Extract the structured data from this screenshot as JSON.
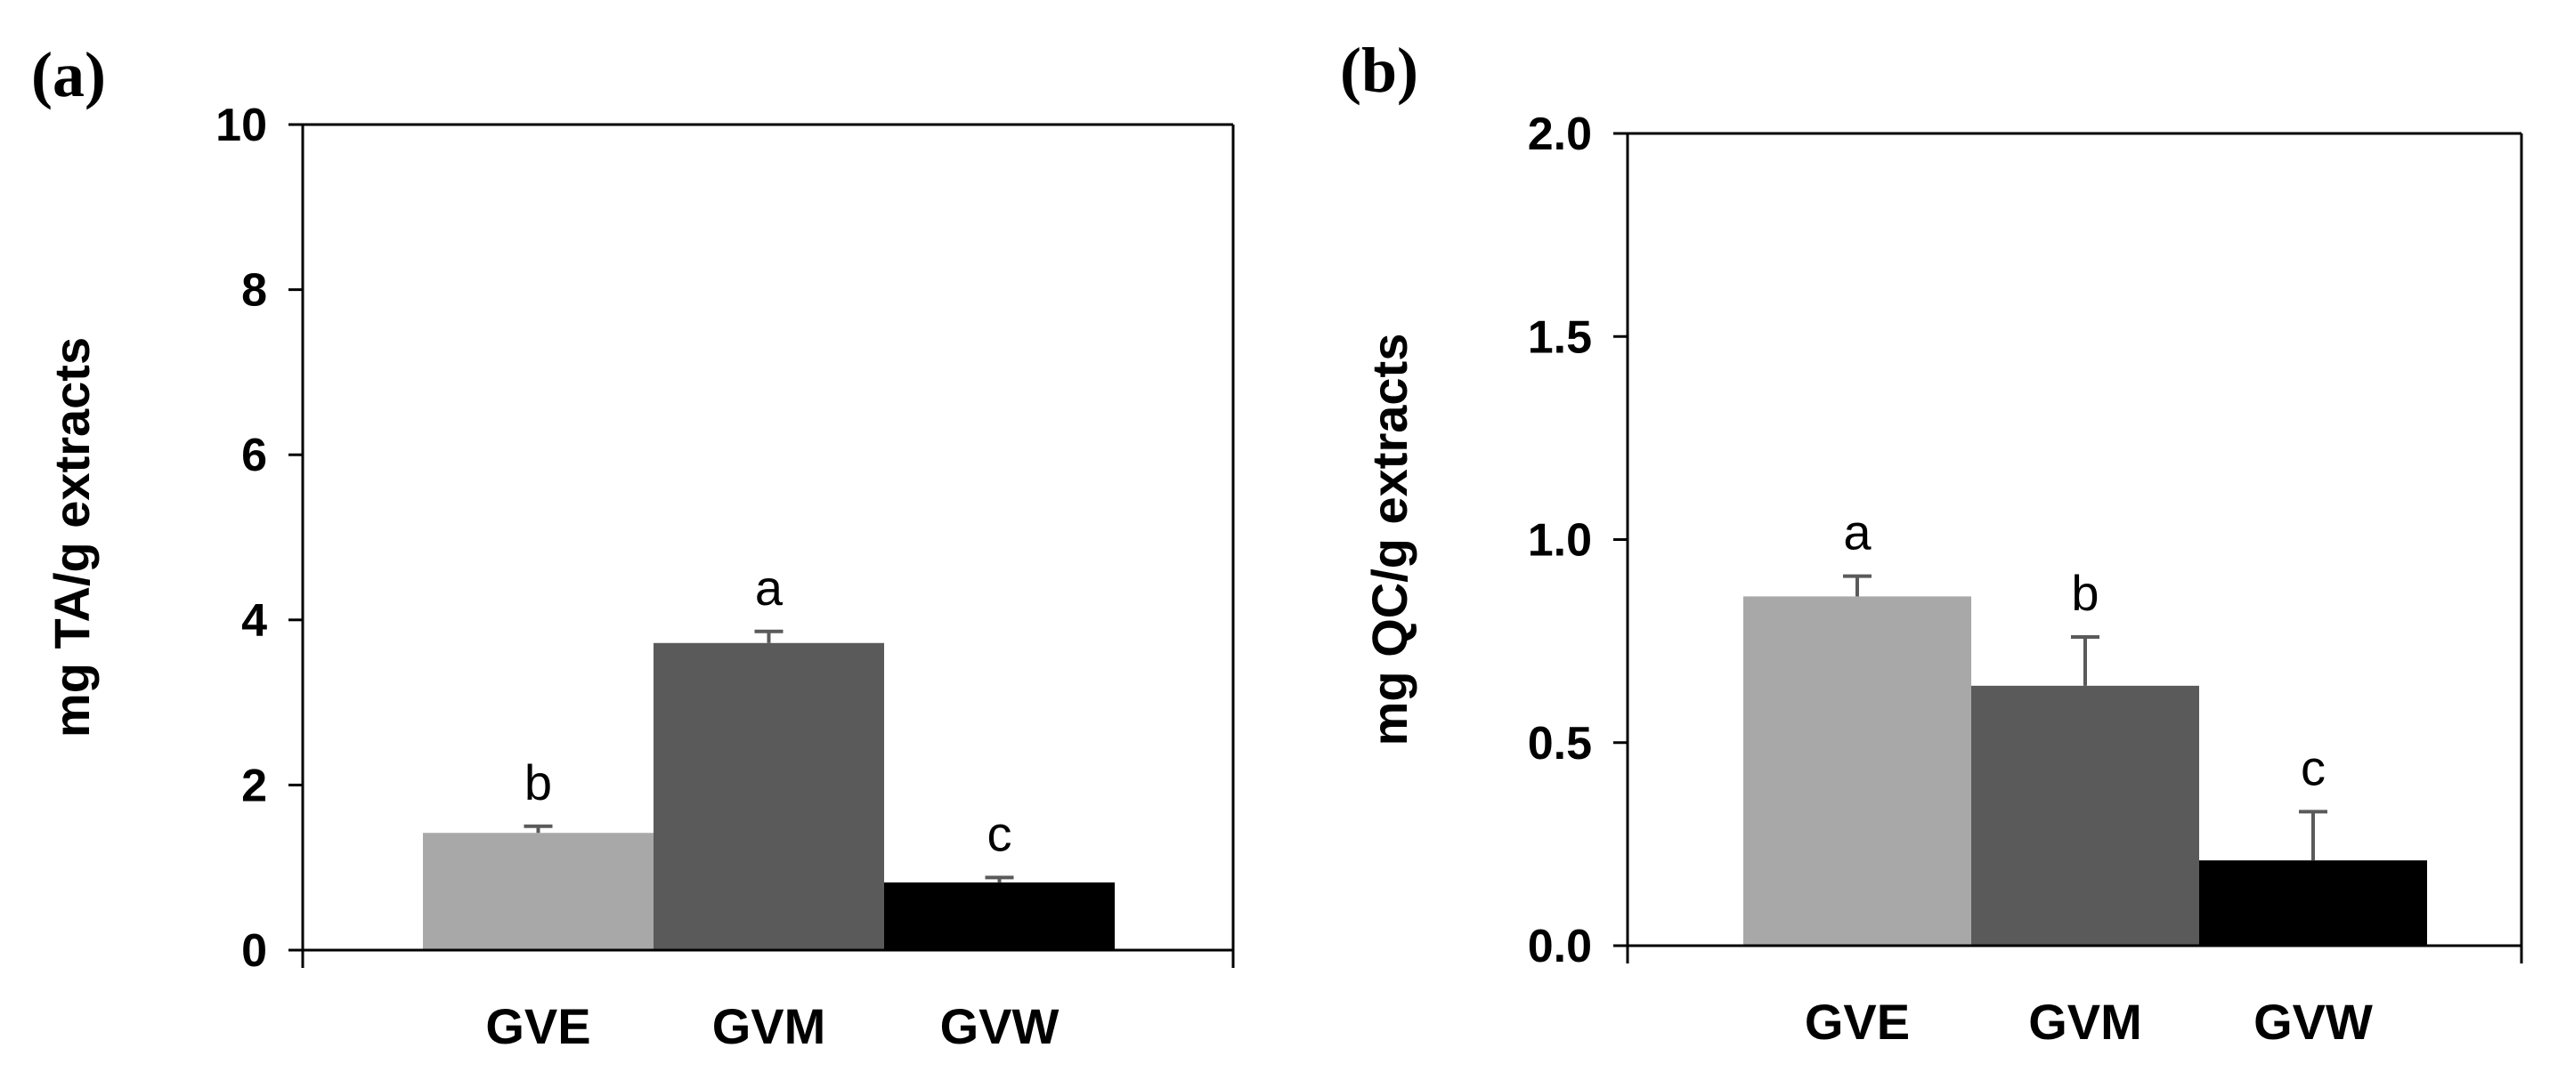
{
  "chart_data": [
    {
      "type": "bar",
      "panel_label": "(a)",
      "categories": [
        "GVE",
        "GVM",
        "GVW"
      ],
      "values": [
        1.42,
        3.72,
        0.82
      ],
      "errors": [
        0.08,
        0.14,
        0.06
      ],
      "significance": [
        "b",
        "a",
        "c"
      ],
      "colors": [
        "#a8a8a8",
        "#5a5a5a",
        "#000000"
      ],
      "ylabel": "mg TA/g extracts",
      "xlabel": "",
      "ylim": [
        0,
        10
      ],
      "yticks": [
        0,
        2,
        4,
        6,
        8,
        10
      ],
      "ytick_labels": [
        "0",
        "2",
        "4",
        "6",
        "8",
        "10"
      ],
      "grid": false
    },
    {
      "type": "bar",
      "panel_label": "(b)",
      "categories": [
        "GVE",
        "GVM",
        "GVW"
      ],
      "values": [
        0.86,
        0.64,
        0.21
      ],
      "errors": [
        0.05,
        0.12,
        0.12
      ],
      "significance": [
        "a",
        "b",
        "c"
      ],
      "colors": [
        "#a8a8a8",
        "#5a5a5a",
        "#000000"
      ],
      "ylabel": "mg QC/g extracts",
      "xlabel": "",
      "ylim": [
        0,
        2
      ],
      "yticks": [
        0,
        0.5,
        1,
        1.5,
        2
      ],
      "ytick_labels": [
        "0.0",
        "0.5",
        "1.0",
        "1.5",
        "2.0"
      ],
      "grid": false
    }
  ]
}
